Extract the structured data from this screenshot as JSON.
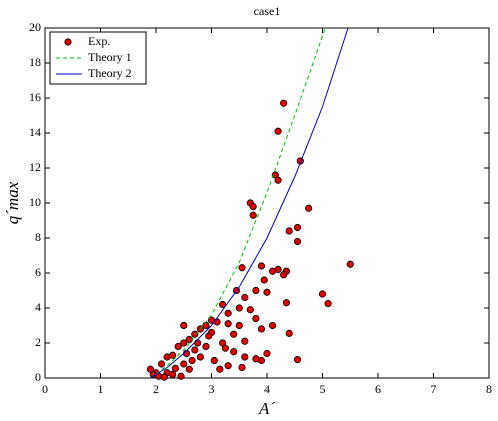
{
  "chart_data": {
    "type": "scatter",
    "title": "case1",
    "xlabel": "A´",
    "ylabel": "q´max",
    "xlim": [
      0,
      8
    ],
    "ylim": [
      0,
      20
    ],
    "xticks": [
      0,
      1,
      2,
      3,
      4,
      5,
      6,
      7,
      8
    ],
    "yticks": [
      0,
      2,
      4,
      6,
      8,
      10,
      12,
      14,
      16,
      18,
      20
    ],
    "legend": "upper left",
    "series": [
      {
        "name": "Exp.",
        "color": "#e00000",
        "mode": "markers",
        "x": [
          4.3,
          4.2,
          4.15,
          4.2,
          4.6,
          4.75,
          5.5,
          5.0,
          5.1,
          4.55,
          3.7,
          3.75,
          3.75,
          3.55,
          4.4,
          4.55,
          4.55,
          4.35,
          4.2,
          4.1,
          3.9,
          3.95,
          4.0,
          4.3,
          3.8,
          3.6,
          4.4,
          4.35,
          4.1,
          3.8,
          3.5,
          3.3,
          3.9,
          3.25,
          3.6,
          3.3,
          3.0,
          3.1,
          2.5,
          2.8,
          2.6,
          2.0,
          2.1,
          2.3,
          2.4,
          2.5,
          2.6,
          2.7,
          2.8,
          2.9,
          3.0,
          2.2,
          2.05,
          1.95,
          1.9,
          2.3,
          2.5,
          2.7,
          2.9,
          3.2,
          3.4,
          3.6,
          3.5,
          3.7,
          3.3,
          2.45,
          2.2,
          2.65,
          3.05,
          3.15,
          3.4,
          3.45,
          3.2,
          3.9,
          4.0,
          2.35,
          2.55,
          2.75,
          2.95,
          3.55,
          3.8,
          2.15
        ],
        "y": [
          15.7,
          14.1,
          11.6,
          11.3,
          12.4,
          9.7,
          6.5,
          4.8,
          4.25,
          1.05,
          10.0,
          9.8,
          9.3,
          6.3,
          8.4,
          8.6,
          7.8,
          6.1,
          6.2,
          6.1,
          6.4,
          5.6,
          4.9,
          5.9,
          5.0,
          4.6,
          2.55,
          4.3,
          3.0,
          3.4,
          4.0,
          3.7,
          1.0,
          1.7,
          1.2,
          0.7,
          2.6,
          3.2,
          3.0,
          1.2,
          0.5,
          0.3,
          0.8,
          1.3,
          1.8,
          2.0,
          2.2,
          2.5,
          2.8,
          3.0,
          3.3,
          0.3,
          0.1,
          0.2,
          0.5,
          0.2,
          0.8,
          1.6,
          1.8,
          2.0,
          2.5,
          2.1,
          3.0,
          3.9,
          3.1,
          0.1,
          1.2,
          1.0,
          1.0,
          0.5,
          1.5,
          5.0,
          4.2,
          2.8,
          1.4,
          0.55,
          1.4,
          2.0,
          2.4,
          0.6,
          1.1,
          0.05
        ]
      },
      {
        "name": "Theory 1",
        "color": "#00c000",
        "mode": "dashed",
        "x": [
          1.9,
          2.2,
          2.5,
          3.0,
          3.5,
          4.0,
          4.5,
          5.05
        ],
        "y": [
          0,
          0.7,
          1.6,
          3.6,
          6.6,
          10.6,
          15.0,
          20
        ]
      },
      {
        "name": "Theory 2",
        "color": "#0000c0",
        "mode": "solid",
        "x": [
          1.9,
          2.2,
          2.5,
          3.0,
          3.5,
          4.0,
          4.5,
          5.0,
          5.46
        ],
        "y": [
          0,
          0.6,
          1.4,
          3.0,
          5.2,
          8.0,
          11.5,
          15.5,
          20
        ]
      }
    ]
  }
}
